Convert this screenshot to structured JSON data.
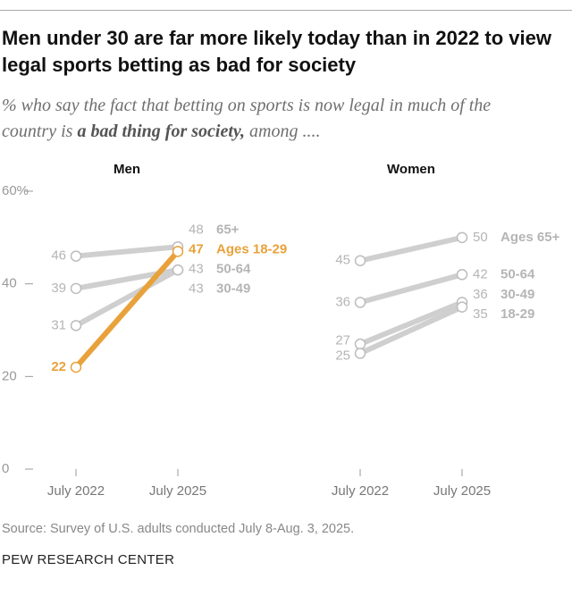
{
  "title": "Men under 30 are far more likely today than in 2022 to view legal sports betting as bad for society",
  "subtitle": [
    "% who say the fact that betting on sports is now legal in much of the country is ",
    "a bad thing for society,",
    " among ...."
  ],
  "source": "Source: Survey of U.S. adults conducted July 8-Aug. 3, 2025.",
  "footer": "PEW RESEARCH CENTER",
  "chart_data": [
    {
      "type": "line",
      "title": "Men",
      "categories": [
        "July 2022",
        "July 2025"
      ],
      "ylim": [
        0,
        60
      ],
      "yticks": [
        0,
        20,
        40,
        {
          "value": 60,
          "label": "60%"
        }
      ],
      "series": [
        {
          "name": "65+",
          "color": "#cfcfcf",
          "values": [
            46,
            48
          ]
        },
        {
          "name": "50-64",
          "color": "#cfcfcf",
          "values": [
            39,
            43
          ]
        },
        {
          "name": "30-49",
          "color": "#cfcfcf",
          "values": [
            31,
            43
          ]
        },
        {
          "name": "Ages 18-29",
          "color": "#e9a23b",
          "values": [
            22,
            47
          ]
        }
      ]
    },
    {
      "type": "line",
      "title": "Women",
      "categories": [
        "July 2022",
        "July 2025"
      ],
      "ylim": [
        0,
        60
      ],
      "series": [
        {
          "name": "Ages 65+",
          "color": "#cfcfcf",
          "values": [
            45,
            50
          ]
        },
        {
          "name": "50-64",
          "color": "#cfcfcf",
          "values": [
            36,
            42
          ]
        },
        {
          "name": "30-49",
          "color": "#cfcfcf",
          "values": [
            27,
            36
          ]
        },
        {
          "name": "18-29",
          "color": "#cfcfcf",
          "values": [
            25,
            35
          ]
        }
      ]
    }
  ]
}
